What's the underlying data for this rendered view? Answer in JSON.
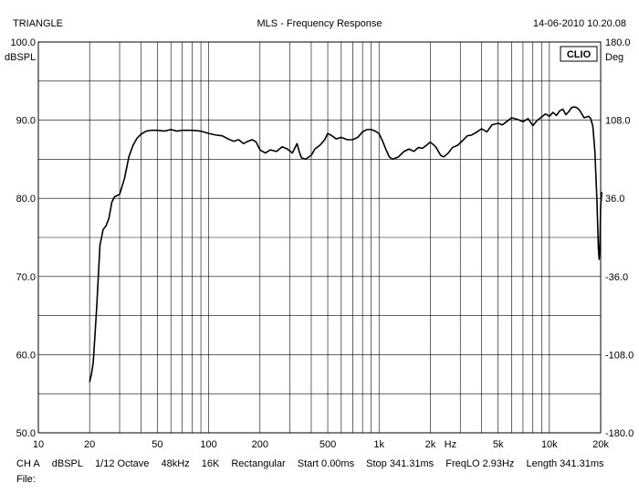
{
  "header": {
    "left": "TRIANGLE",
    "center": "MLS - Frequency Response",
    "right": "14-06-2010 10.20.08"
  },
  "brand": "CLIO",
  "footer": {
    "items": [
      "CH A",
      "dBSPL",
      "1/12 Octave",
      "48kHz",
      "16K",
      "Rectangular",
      "Start 0.00ms",
      "Stop 341.31ms",
      "FreqLO 2.93Hz",
      "Length 341.31ms"
    ],
    "file_label": "File:"
  },
  "colors": {
    "trace": "#000000",
    "grid": "#000000",
    "background": "#ffffff"
  },
  "chart_data": {
    "type": "line",
    "title": "MLS - Frequency Response",
    "xscale": "log",
    "xlim": [
      10,
      20000
    ],
    "ylim": [
      50,
      100
    ],
    "y2lim": [
      -180,
      180
    ],
    "ylabel": "dBSPL",
    "y2label": "Deg",
    "xunit": "Hz",
    "grid": true,
    "x_ticks": [
      {
        "value": 10,
        "label": "10"
      },
      {
        "value": 20,
        "label": "20"
      },
      {
        "value": 50,
        "label": "50"
      },
      {
        "value": 100,
        "label": "100"
      },
      {
        "value": 200,
        "label": "200"
      },
      {
        "value": 500,
        "label": "500"
      },
      {
        "value": 1000,
        "label": "1k"
      },
      {
        "value": 2000,
        "label": "2k"
      },
      {
        "value": 5000,
        "label": "5k"
      },
      {
        "value": 10000,
        "label": "10k"
      },
      {
        "value": 20000,
        "label": "20k"
      }
    ],
    "y_ticks": [
      {
        "value": 100,
        "label": "100.0"
      },
      {
        "value": 90,
        "label": "90.0"
      },
      {
        "value": 80,
        "label": "80.0"
      },
      {
        "value": 70,
        "label": "70.0"
      },
      {
        "value": 60,
        "label": "60.0"
      },
      {
        "value": 50,
        "label": "50.0"
      }
    ],
    "y2_ticks": [
      {
        "value": 180,
        "label": "180.0"
      },
      {
        "value": 108,
        "label": "108.0"
      },
      {
        "value": 36,
        "label": "36.0"
      },
      {
        "value": -36,
        "label": "-36.0"
      },
      {
        "value": -108,
        "label": "-108.0"
      },
      {
        "value": -180,
        "label": "-180.0"
      }
    ],
    "series": [
      {
        "points": [
          [
            20,
            56.5
          ],
          [
            20.5,
            57.5
          ],
          [
            21,
            59
          ],
          [
            22,
            66
          ],
          [
            23,
            74
          ],
          [
            24,
            76
          ],
          [
            25,
            76.5
          ],
          [
            26,
            77.5
          ],
          [
            27,
            79.5
          ],
          [
            28,
            80.2
          ],
          [
            30,
            80.5
          ],
          [
            32,
            82.5
          ],
          [
            34,
            85.3
          ],
          [
            36,
            86.8
          ],
          [
            38,
            87.7
          ],
          [
            40,
            88.2
          ],
          [
            43,
            88.6
          ],
          [
            46,
            88.7
          ],
          [
            50,
            88.7
          ],
          [
            55,
            88.6
          ],
          [
            60,
            88.8
          ],
          [
            65,
            88.6
          ],
          [
            70,
            88.7
          ],
          [
            80,
            88.7
          ],
          [
            90,
            88.6
          ],
          [
            100,
            88.3
          ],
          [
            110,
            88.1
          ],
          [
            120,
            88.0
          ],
          [
            130,
            87.6
          ],
          [
            140,
            87.3
          ],
          [
            150,
            87.5
          ],
          [
            160,
            87.0
          ],
          [
            170,
            87.3
          ],
          [
            180,
            87.5
          ],
          [
            190,
            87.2
          ],
          [
            200,
            86.2
          ],
          [
            215,
            85.8
          ],
          [
            230,
            86.2
          ],
          [
            250,
            86.0
          ],
          [
            270,
            86.6
          ],
          [
            290,
            86.3
          ],
          [
            310,
            85.8
          ],
          [
            330,
            87.0
          ],
          [
            340,
            86.0
          ],
          [
            350,
            85.2
          ],
          [
            370,
            85.0
          ],
          [
            400,
            85.5
          ],
          [
            420,
            86.3
          ],
          [
            450,
            86.8
          ],
          [
            480,
            87.5
          ],
          [
            500,
            88.3
          ],
          [
            530,
            88.0
          ],
          [
            560,
            87.6
          ],
          [
            600,
            87.8
          ],
          [
            650,
            87.5
          ],
          [
            700,
            87.5
          ],
          [
            750,
            87.8
          ],
          [
            800,
            88.5
          ],
          [
            850,
            88.8
          ],
          [
            900,
            88.8
          ],
          [
            950,
            88.6
          ],
          [
            1000,
            88.3
          ],
          [
            1050,
            87.3
          ],
          [
            1100,
            86.2
          ],
          [
            1150,
            85.3
          ],
          [
            1200,
            85.0
          ],
          [
            1300,
            85.3
          ],
          [
            1400,
            86.0
          ],
          [
            1500,
            86.3
          ],
          [
            1600,
            86.0
          ],
          [
            1700,
            86.5
          ],
          [
            1800,
            86.4
          ],
          [
            1900,
            86.8
          ],
          [
            2000,
            87.2
          ],
          [
            2150,
            86.6
          ],
          [
            2300,
            85.5
          ],
          [
            2400,
            85.3
          ],
          [
            2550,
            85.8
          ],
          [
            2700,
            86.5
          ],
          [
            2900,
            86.8
          ],
          [
            3100,
            87.4
          ],
          [
            3300,
            88.0
          ],
          [
            3500,
            88.1
          ],
          [
            3700,
            88.4
          ],
          [
            4000,
            88.9
          ],
          [
            4300,
            88.5
          ],
          [
            4600,
            89.4
          ],
          [
            5000,
            89.6
          ],
          [
            5300,
            89.4
          ],
          [
            5600,
            89.8
          ],
          [
            6000,
            90.3
          ],
          [
            6500,
            90.1
          ],
          [
            7000,
            89.8
          ],
          [
            7500,
            90.2
          ],
          [
            8000,
            89.3
          ],
          [
            8500,
            90.0
          ],
          [
            9000,
            90.4
          ],
          [
            9500,
            90.8
          ],
          [
            10000,
            90.5
          ],
          [
            10500,
            91.0
          ],
          [
            11000,
            90.6
          ],
          [
            11500,
            91.2
          ],
          [
            12000,
            91.4
          ],
          [
            12500,
            90.7
          ],
          [
            13000,
            91.1
          ],
          [
            13500,
            91.6
          ],
          [
            14000,
            91.7
          ],
          [
            14500,
            91.6
          ],
          [
            15000,
            91.3
          ],
          [
            15500,
            90.8
          ],
          [
            16000,
            90.3
          ],
          [
            16500,
            90.4
          ],
          [
            17000,
            90.5
          ],
          [
            17500,
            90.2
          ],
          [
            18000,
            89.2
          ],
          [
            18500,
            86.0
          ],
          [
            19000,
            80.0
          ],
          [
            19400,
            73.5
          ],
          [
            19600,
            72.2
          ],
          [
            19800,
            74.0
          ],
          [
            20000,
            79.0
          ],
          [
            20300,
            80.8
          ]
        ]
      }
    ]
  }
}
